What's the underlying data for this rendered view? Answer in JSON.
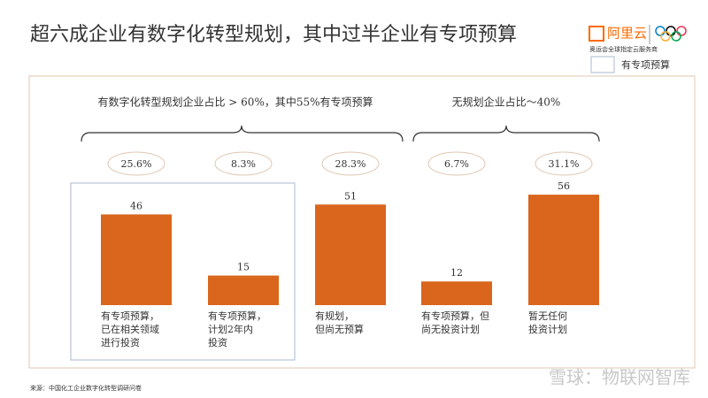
{
  "chart_data": {
    "type": "bar",
    "title": "超六成企业有数字化转型规划，其中过半企业有专项预算",
    "logo": "阿里云",
    "logo_subtitle": "奥运会全球指定云服务商",
    "legend": "有专项预算",
    "group_labels": [
      "有数字化转型规划企业占比 > 60%，其中55%有专项预算",
      "无规划企业占比～40%"
    ],
    "categories": [
      [
        "有专项预算，",
        "已在相关领域",
        "进行投资"
      ],
      [
        "有专项预算，",
        "计划2年内",
        "投资"
      ],
      [
        "有规划，",
        "但尚无预算"
      ],
      [
        "有专项预算，但",
        "尚无投资计划"
      ],
      [
        "暂无任何",
        "投资计划"
      ]
    ],
    "values": [
      46,
      15,
      51,
      12,
      56
    ],
    "shares": [
      {
        "value": 25.6,
        "label": "25.6%"
      },
      {
        "value": 8.3,
        "label": "8.3%"
      },
      {
        "value": 28.3,
        "label": "28.3%"
      },
      {
        "value": 6.7,
        "label": "6.7%"
      },
      {
        "value": 31.1,
        "label": "31.1%"
      }
    ],
    "color": "#d9661c",
    "source": "来源：中国化工企业数字化转型调研问卷",
    "watermark": "雪球：物联网智库"
  }
}
